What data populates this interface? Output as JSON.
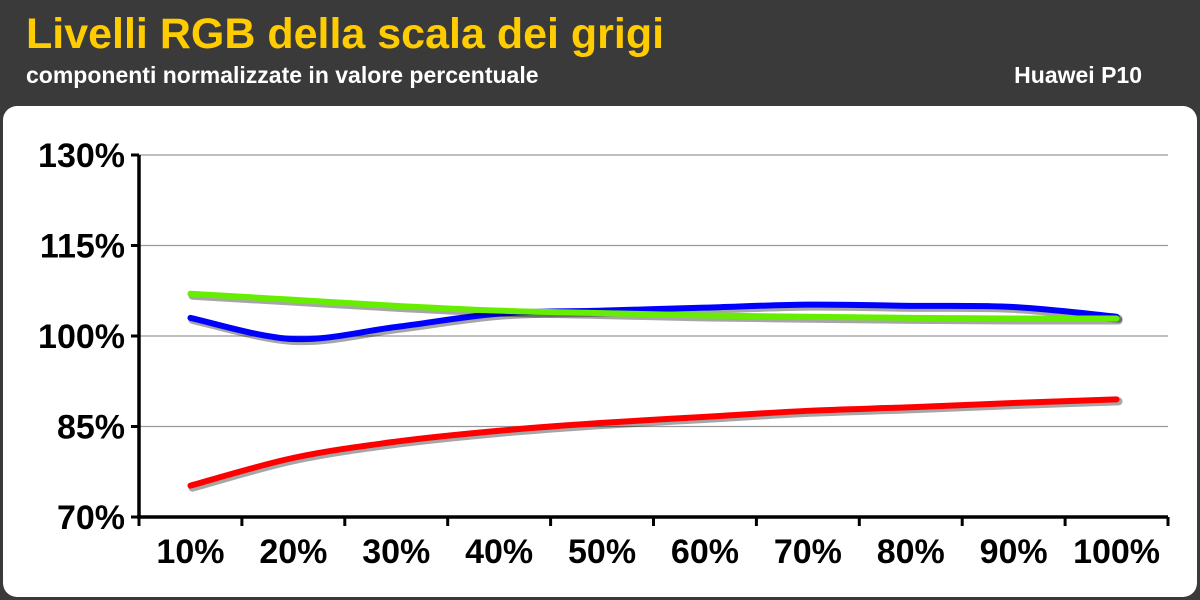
{
  "header": {
    "title": "Livelli RGB della scala dei grigi",
    "subtitle": "componenti normalizzate in valore percentuale",
    "device": "Huawei P10"
  },
  "colors": {
    "background": "#3a3a3a",
    "title": "#ffcc00",
    "plot_background": "#ffffff",
    "grid": "#999999"
  },
  "chart_data": {
    "type": "line",
    "title": "Livelli RGB della scala dei grigi",
    "subtitle": "componenti normalizzate in valore percentuale",
    "categories": [
      "10%",
      "20%",
      "30%",
      "40%",
      "50%",
      "60%",
      "70%",
      "80%",
      "90%",
      "100%"
    ],
    "ylim": [
      70,
      130
    ],
    "yticks": [
      70,
      85,
      100,
      115,
      130
    ],
    "ytick_labels": [
      "70%",
      "85%",
      "100%",
      "115%",
      "130%"
    ],
    "grid": true,
    "series": [
      {
        "color": "#ff0000",
        "values": [
          75.2,
          79.8,
          82.5,
          84.3,
          85.6,
          86.6,
          87.6,
          88.2,
          88.9,
          89.5
        ]
      },
      {
        "color": "#0000ff",
        "values": [
          103.0,
          99.5,
          101.5,
          103.7,
          104.2,
          104.7,
          105.2,
          105.0,
          104.8,
          103.2
        ]
      },
      {
        "color": "#66ee00",
        "values": [
          107.0,
          106.0,
          105.0,
          104.2,
          103.8,
          103.4,
          103.2,
          103.0,
          102.9,
          102.9
        ]
      }
    ]
  }
}
